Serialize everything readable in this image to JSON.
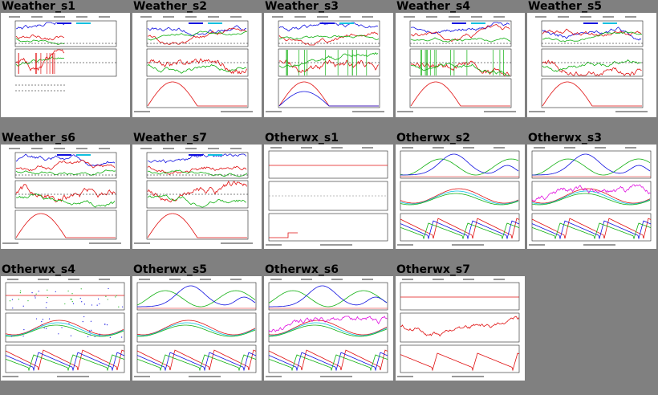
{
  "gallery": {
    "tiles": [
      {
        "label": "Weather_s1",
        "kind": "weather",
        "variant": 1
      },
      {
        "label": "Weather_s2",
        "kind": "weather",
        "variant": 2
      },
      {
        "label": "Weather_s3",
        "kind": "weather",
        "variant": 3
      },
      {
        "label": "Weather_s4",
        "kind": "weather",
        "variant": 4
      },
      {
        "label": "Weather_s5",
        "kind": "weather",
        "variant": 5
      },
      {
        "label": "Weather_s6",
        "kind": "weather",
        "variant": 6
      },
      {
        "label": "Weather_s7",
        "kind": "weather",
        "variant": 7
      },
      {
        "label": "Otherwx_s1",
        "kind": "otherwx",
        "variant": 1
      },
      {
        "label": "Otherwx_s2",
        "kind": "otherwx",
        "variant": 2
      },
      {
        "label": "Otherwx_s3",
        "kind": "otherwx",
        "variant": 3
      },
      {
        "label": "Otherwx_s4",
        "kind": "otherwx",
        "variant": 4
      },
      {
        "label": "Otherwx_s5",
        "kind": "otherwx",
        "variant": 5
      },
      {
        "label": "Otherwx_s6",
        "kind": "otherwx",
        "variant": 6
      },
      {
        "label": "Otherwx_s7",
        "kind": "otherwx",
        "variant": 7
      }
    ]
  },
  "colors": {
    "background": "#808080",
    "thumb_bg": "#ffffff",
    "series_red": "#e01010",
    "series_blue": "#1010e0",
    "series_green": "#10b010",
    "series_cyan": "#10c0e0",
    "series_magenta": "#e010e0"
  }
}
